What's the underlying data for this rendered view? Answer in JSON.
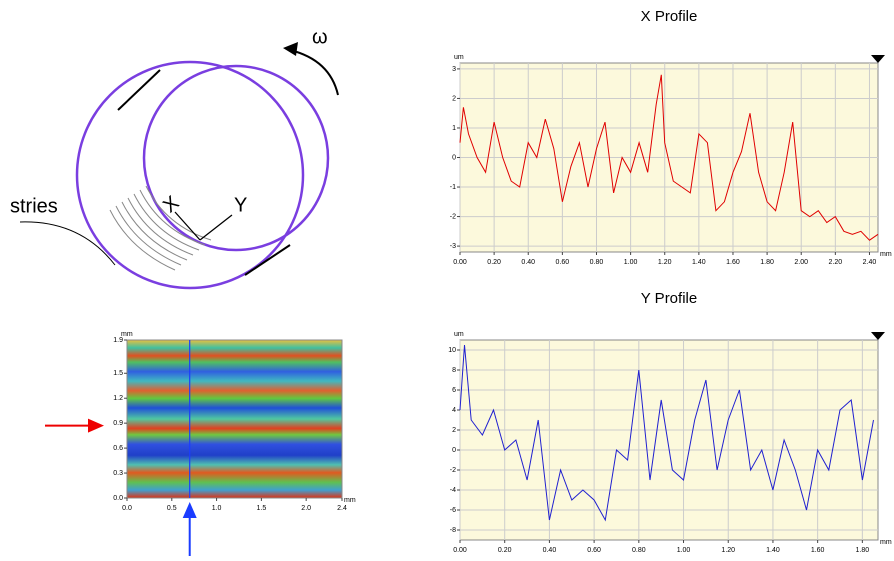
{
  "diagram": {
    "omega": "ω",
    "stries": "stries",
    "axis_x": "X",
    "axis_y": "Y"
  },
  "chart_data": [
    {
      "type": "line",
      "title": "X Profile",
      "x_label": "mm",
      "y_label": "um",
      "xlim": [
        0,
        2.45
      ],
      "ylim": [
        -3.2,
        3.2
      ],
      "grid": true,
      "xticks": [
        {
          "value": 0,
          "label": "0.00"
        },
        {
          "value": 0.2,
          "label": "0.20"
        },
        {
          "value": 0.4,
          "label": "0.40"
        },
        {
          "value": 0.6,
          "label": "0.60"
        },
        {
          "value": 0.8,
          "label": "0.80"
        },
        {
          "value": 1,
          "label": "1.00"
        },
        {
          "value": 1.2,
          "label": "1.20"
        },
        {
          "value": 1.4,
          "label": "1.40"
        },
        {
          "value": 1.6,
          "label": "1.60"
        },
        {
          "value": 1.8,
          "label": "1.80"
        },
        {
          "value": 2,
          "label": "2.00"
        },
        {
          "value": 2.2,
          "label": "2.20"
        },
        {
          "value": 2.4,
          "label": "2.40"
        }
      ],
      "yticks": [
        -3,
        -2,
        -1,
        0,
        1,
        2,
        3
      ],
      "x": [
        0,
        0.02,
        0.05,
        0.1,
        0.15,
        0.2,
        0.25,
        0.3,
        0.35,
        0.4,
        0.45,
        0.5,
        0.55,
        0.6,
        0.65,
        0.7,
        0.75,
        0.8,
        0.85,
        0.9,
        0.95,
        1.0,
        1.05,
        1.1,
        1.15,
        1.18,
        1.2,
        1.25,
        1.3,
        1.35,
        1.4,
        1.45,
        1.5,
        1.55,
        1.6,
        1.65,
        1.7,
        1.75,
        1.8,
        1.85,
        1.9,
        1.95,
        2.0,
        2.05,
        2.1,
        2.15,
        2.2,
        2.25,
        2.3,
        2.35,
        2.4,
        2.45
      ],
      "series": [
        {
          "color": "#e00000",
          "values": [
            0.5,
            1.7,
            0.8,
            0,
            -0.5,
            1.2,
            0,
            -0.8,
            -1,
            0.5,
            0,
            1.3,
            0.3,
            -1.5,
            -0.3,
            0.5,
            -1,
            0.3,
            1.2,
            -1.2,
            0,
            -0.5,
            0.5,
            -0.5,
            1.8,
            2.8,
            0.5,
            -0.8,
            -1,
            -1.2,
            0.8,
            0.5,
            -1.8,
            -1.5,
            -0.5,
            0.2,
            1.5,
            -0.5,
            -1.5,
            -1.8,
            -0.5,
            1.2,
            -1.8,
            -2,
            -1.8,
            -2.2,
            -2,
            -2.5,
            -2.6,
            -2.5,
            -2.8,
            -2.6
          ]
        }
      ]
    },
    {
      "type": "line",
      "title": "Y Profile",
      "x_label": "mm",
      "y_label": "um",
      "xlim": [
        0,
        1.87
      ],
      "ylim": [
        -9,
        11
      ],
      "grid": true,
      "xticks": [
        {
          "value": 0,
          "label": "0.00"
        },
        {
          "value": 0.2,
          "label": "0.20"
        },
        {
          "value": 0.4,
          "label": "0.40"
        },
        {
          "value": 0.6,
          "label": "0.60"
        },
        {
          "value": 0.8,
          "label": "0.80"
        },
        {
          "value": 1,
          "label": "1.00"
        },
        {
          "value": 1.2,
          "label": "1.20"
        },
        {
          "value": 1.4,
          "label": "1.40"
        },
        {
          "value": 1.6,
          "label": "1.60"
        },
        {
          "value": 1.8,
          "label": "1.80"
        }
      ],
      "yticks": [
        -8,
        -6,
        -4,
        -2,
        0,
        2,
        4,
        6,
        8,
        10
      ],
      "x": [
        0,
        0.02,
        0.05,
        0.1,
        0.15,
        0.2,
        0.25,
        0.3,
        0.35,
        0.4,
        0.45,
        0.5,
        0.55,
        0.6,
        0.65,
        0.7,
        0.75,
        0.8,
        0.85,
        0.9,
        0.95,
        1.0,
        1.05,
        1.1,
        1.15,
        1.2,
        1.25,
        1.3,
        1.35,
        1.4,
        1.45,
        1.5,
        1.55,
        1.6,
        1.65,
        1.7,
        1.75,
        1.8,
        1.85
      ],
      "series": [
        {
          "color": "#2020d0",
          "values": [
            4,
            10.5,
            3,
            1.5,
            4,
            0,
            1,
            -3,
            3,
            -7,
            -2,
            -5,
            -4,
            -5,
            -7,
            0,
            -1,
            8,
            -3,
            5,
            -2,
            -3,
            3,
            7,
            -2,
            3,
            6,
            -2,
            0,
            -4,
            1,
            -2,
            -6,
            0,
            -2,
            4,
            5,
            -3,
            3
          ]
        }
      ]
    },
    {
      "type": "map",
      "x_label": "mm",
      "y_label": "mm",
      "xlim": [
        0,
        2.4
      ],
      "ylim": [
        0,
        1.9
      ],
      "xticks": [
        {
          "value": 0,
          "label": "0.0"
        },
        0.5,
        {
          "value": 1,
          "label": "1.0"
        },
        1.5,
        {
          "value": 2,
          "label": "2.0"
        },
        2.4
      ],
      "yticks": [
        {
          "value": 0,
          "label": "0.0"
        },
        0.3,
        0.6,
        0.9,
        1.2,
        1.5,
        1.9
      ],
      "cursor_x": 0.7,
      "cursor_y": 0.87
    }
  ]
}
